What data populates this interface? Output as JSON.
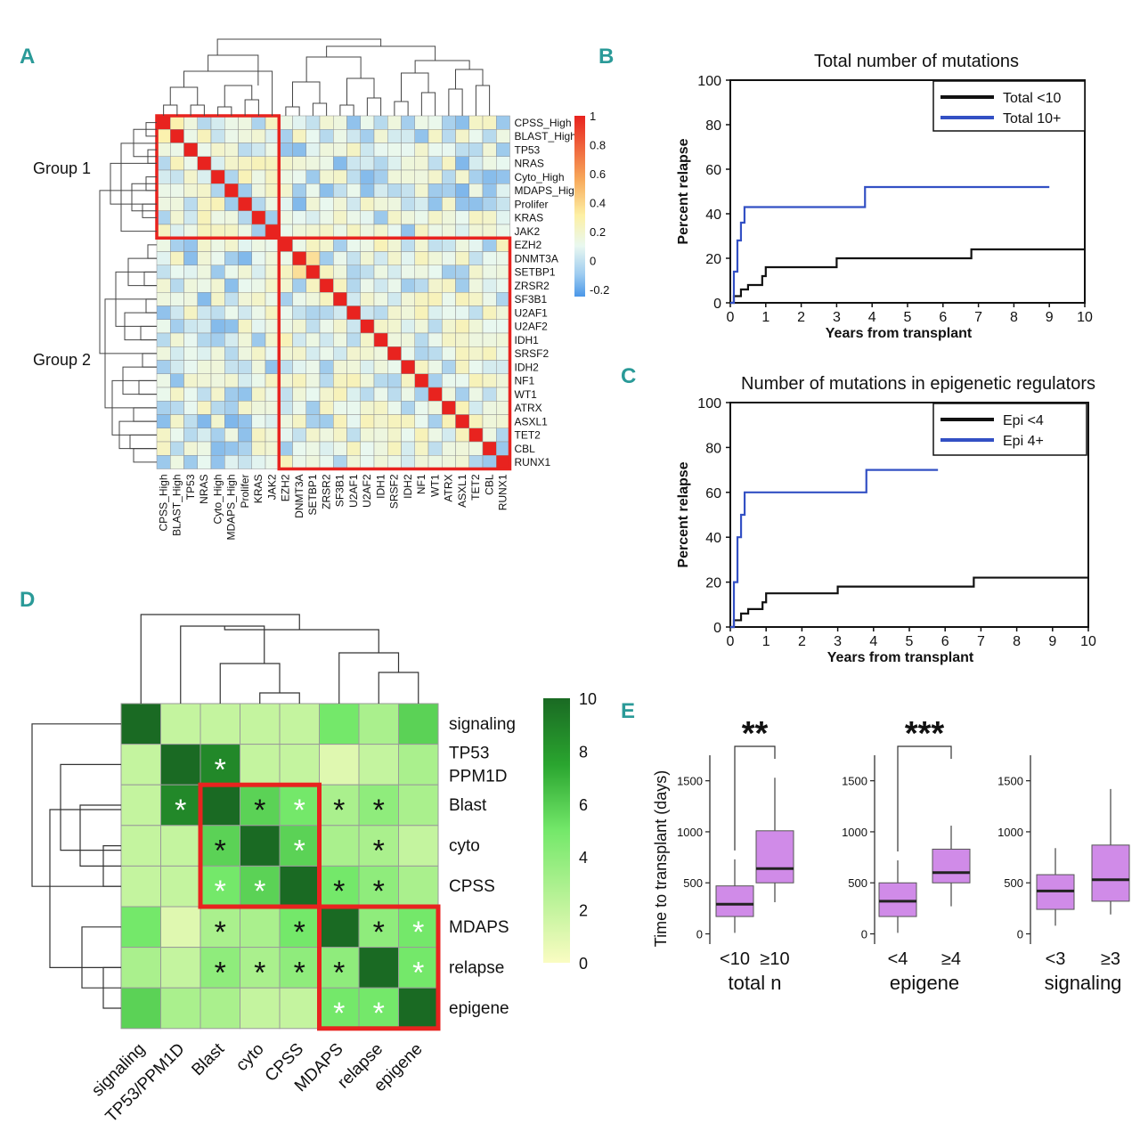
{
  "panels": {
    "a": "A",
    "b": "B",
    "c": "C",
    "d": "D",
    "e": "E"
  },
  "chart_data": [
    {
      "id": "A",
      "type": "heatmap",
      "title": "",
      "genes": [
        "CPSS_High",
        "BLAST_High",
        "TP53",
        "NRAS",
        "Cyto_High",
        "MDAPS_High",
        "Prolifer",
        "KRAS",
        "JAK2",
        "EZH2",
        "DNMT3A",
        "SETBP1",
        "ZRSR2",
        "SF3B1",
        "U2AF1",
        "U2AF2",
        "IDH1",
        "SRSF2",
        "IDH2",
        "NF1",
        "WT1",
        "ATRX",
        "ASXL1",
        "TET2",
        "CBL",
        "RUNX1"
      ],
      "groups": [
        {
          "label": "Group 1",
          "members": 9
        },
        {
          "label": "Group 2",
          "members": 17
        }
      ],
      "colorbar": {
        "ticks": [
          "1",
          "0.8",
          "0.6",
          "0.4",
          "0.2",
          "0",
          "-0.2"
        ],
        "range": [
          -0.25,
          1
        ]
      },
      "colors": {
        "high": "#e8231f",
        "mid": "#fefcc7",
        "low": "#4a97e8",
        "box": "#e8231f"
      },
      "note": "diagonal = 1 (self-correlation); off-diagonal values weakly correlated in range about -0.25 to 0.35"
    },
    {
      "id": "B",
      "type": "line",
      "title": "Total number of mutations",
      "xlabel": "Years from transplant",
      "ylabel": "Percent relapse",
      "xlim": [
        0,
        10
      ],
      "ylim": [
        0,
        100
      ],
      "xticks": [
        "0",
        "1",
        "2",
        "3",
        "4",
        "5",
        "6",
        "7",
        "8",
        "9",
        "10"
      ],
      "yticks": [
        "0",
        "20",
        "40",
        "60",
        "80",
        "100"
      ],
      "series": [
        {
          "name": "Total <10",
          "color": "#111111",
          "x": [
            0,
            0.1,
            0.1,
            0.3,
            0.3,
            0.5,
            0.5,
            0.9,
            0.9,
            1,
            1,
            3,
            3,
            6.8,
            6.8,
            10
          ],
          "y": [
            0,
            0,
            3,
            3,
            6,
            6,
            8,
            8,
            12,
            12,
            16,
            16,
            20,
            20,
            24,
            24
          ]
        },
        {
          "name": "Total 10+",
          "color": "#3350c4",
          "x": [
            0,
            0.1,
            0.1,
            0.2,
            0.2,
            0.3,
            0.3,
            0.4,
            0.4,
            3.8,
            3.8,
            9
          ],
          "y": [
            0,
            0,
            14,
            14,
            28,
            28,
            36,
            36,
            43,
            43,
            52,
            52
          ]
        }
      ]
    },
    {
      "id": "C",
      "type": "line",
      "title": "Number of mutations in epigenetic regulators",
      "xlabel": "Years from transplant",
      "ylabel": "Percent relapse",
      "xlim": [
        0,
        10
      ],
      "ylim": [
        0,
        100
      ],
      "xticks": [
        "0",
        "1",
        "2",
        "3",
        "4",
        "5",
        "6",
        "7",
        "8",
        "9",
        "10"
      ],
      "yticks": [
        "0",
        "20",
        "40",
        "60",
        "80",
        "100"
      ],
      "series": [
        {
          "name": "Epi <4",
          "color": "#111111",
          "x": [
            0,
            0.1,
            0.1,
            0.3,
            0.3,
            0.5,
            0.5,
            0.9,
            0.9,
            1,
            1,
            3,
            3,
            6.8,
            6.8,
            10
          ],
          "y": [
            0,
            0,
            3,
            3,
            6,
            6,
            8,
            8,
            11,
            11,
            15,
            15,
            18,
            18,
            22,
            22
          ]
        },
        {
          "name": "Epi 4+",
          "color": "#3350c4",
          "x": [
            0,
            0.1,
            0.1,
            0.2,
            0.2,
            0.3,
            0.3,
            0.4,
            0.4,
            3.8,
            3.8,
            5.8
          ],
          "y": [
            0,
            0,
            20,
            20,
            40,
            40,
            50,
            50,
            60,
            60,
            70,
            70
          ]
        }
      ]
    },
    {
      "id": "D",
      "type": "heatmap",
      "title": "",
      "labels_y": [
        "signaling",
        "TP53\nPPM1D",
        "Blast",
        "cyto",
        "CPSS",
        "MDAPS",
        "relapse",
        "epigene"
      ],
      "labels_x": [
        "signaling",
        "TP53/PPM1D",
        "Blast",
        "cyto",
        "CPSS",
        "MDAPS",
        "relapse",
        "epigene"
      ],
      "values": [
        [
          10,
          2,
          2,
          2,
          2,
          5,
          3,
          6
        ],
        [
          2,
          10,
          9,
          2,
          2,
          1,
          2,
          3
        ],
        [
          2,
          9,
          10,
          6,
          5,
          3,
          4,
          3
        ],
        [
          2,
          2,
          6,
          10,
          6,
          3,
          3,
          2
        ],
        [
          2,
          2,
          5,
          6,
          10,
          5,
          4,
          3
        ],
        [
          5,
          1,
          3,
          3,
          5,
          10,
          4,
          5
        ],
        [
          3,
          2,
          4,
          3,
          4,
          4,
          10,
          5
        ],
        [
          6,
          3,
          3,
          2,
          2,
          5,
          5,
          10
        ]
      ],
      "stars": [
        [
          0,
          0,
          0,
          0,
          0,
          0,
          0,
          0
        ],
        [
          0,
          0,
          2,
          0,
          0,
          0,
          0,
          0
        ],
        [
          0,
          2,
          0,
          1,
          2,
          1,
          1,
          0
        ],
        [
          0,
          0,
          1,
          0,
          2,
          0,
          1,
          0
        ],
        [
          0,
          0,
          2,
          2,
          0,
          1,
          1,
          0
        ],
        [
          0,
          0,
          1,
          0,
          1,
          0,
          1,
          2
        ],
        [
          0,
          0,
          1,
          1,
          1,
          1,
          0,
          2
        ],
        [
          0,
          0,
          0,
          0,
          0,
          2,
          2,
          0
        ]
      ],
      "star_symbol": "*",
      "colorbar": {
        "ticks": [
          "10",
          "8",
          "6",
          "4",
          "2",
          "0"
        ],
        "range": [
          0,
          10
        ]
      }
    },
    {
      "id": "E",
      "type": "box",
      "ylabel": "Time to transplant (days)",
      "yticks": [
        "0",
        "500",
        "1000",
        "1500"
      ],
      "ylim": [
        -100,
        1750
      ],
      "color": "#d08be8",
      "groups": [
        {
          "xlabel": "total n",
          "categories": [
            "<10",
            "≥10"
          ],
          "signif": "**",
          "boxes": [
            {
              "whislo": 10,
              "q1": 170,
              "med": 290,
              "q3": 470,
              "whishi": 730
            },
            {
              "whislo": 310,
              "q1": 500,
              "med": 640,
              "q3": 1010,
              "whishi": 1530
            }
          ]
        },
        {
          "xlabel": "epigene",
          "categories": [
            "<4",
            "≥4"
          ],
          "signif": "***",
          "boxes": [
            {
              "whislo": 10,
              "q1": 170,
              "med": 320,
              "q3": 500,
              "whishi": 720
            },
            {
              "whislo": 270,
              "q1": 500,
              "med": 600,
              "q3": 830,
              "whishi": 1060
            }
          ]
        },
        {
          "xlabel": "signaling",
          "categories": [
            "<3",
            "≥3"
          ],
          "signif": "",
          "boxes": [
            {
              "whislo": 80,
              "q1": 240,
              "med": 420,
              "q3": 580,
              "whishi": 840
            },
            {
              "whislo": 190,
              "q1": 320,
              "med": 530,
              "q3": 870,
              "whishi": 1420
            }
          ]
        }
      ]
    }
  ]
}
